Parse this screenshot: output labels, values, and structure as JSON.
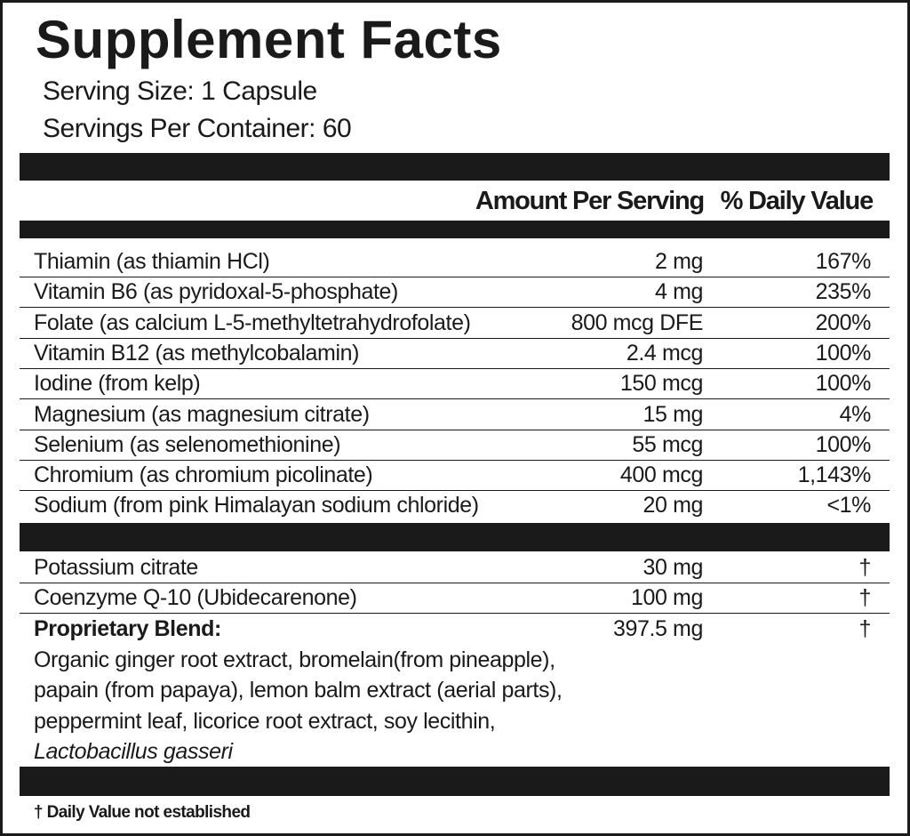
{
  "title": "Supplement Facts",
  "serving_size": "Serving Size: 1 Capsule",
  "servings_per_container": "Servings Per Container: 60",
  "header": {
    "amount": "Amount Per Serving",
    "dv": "% Daily Value"
  },
  "nutrients": [
    {
      "name": "Thiamin (as thiamin HCl)",
      "amount": "2 mg",
      "dv": "167%"
    },
    {
      "name": "Vitamin B6 (as pyridoxal-5-phosphate)",
      "amount": "4 mg",
      "dv": "235%"
    },
    {
      "name": "Folate (as calcium L-5-methyltetrahydrofolate)",
      "amount": "800 mcg DFE",
      "dv": "200%"
    },
    {
      "name": "Vitamin B12 (as methylcobalamin)",
      "amount": "2.4 mcg",
      "dv": "100%"
    },
    {
      "name": "Iodine (from kelp)",
      "amount": "150 mcg",
      "dv": "100%"
    },
    {
      "name": "Magnesium (as magnesium citrate)",
      "amount": "15 mg",
      "dv": "4%"
    },
    {
      "name": "Selenium (as selenomethionine)",
      "amount": "55 mcg",
      "dv": "100%"
    },
    {
      "name": "Chromium (as chromium picolinate)",
      "amount": "400 mcg",
      "dv": "1,143%"
    },
    {
      "name": "Sodium (from pink Himalayan sodium chloride)",
      "amount": "20 mg",
      "dv": "<1%"
    }
  ],
  "other": [
    {
      "name": "Potassium citrate",
      "amount": "30 mg",
      "dv": "†"
    },
    {
      "name": "Coenzyme Q-10 (Ubidecarenone)",
      "amount": "100 mg",
      "dv": "†"
    },
    {
      "name": "Proprietary Blend:",
      "amount": "397.5 mg",
      "dv": "†"
    }
  ],
  "blend_ingredients": [
    "Organic ginger root extract, bromelain(from pineapple),",
    "papain (from papaya), lemon balm extract (aerial parts),",
    "peppermint leaf, licorice root extract, soy lecithin,",
    "Lactobacillus gasseri"
  ],
  "footnote": "† Daily Value not established"
}
